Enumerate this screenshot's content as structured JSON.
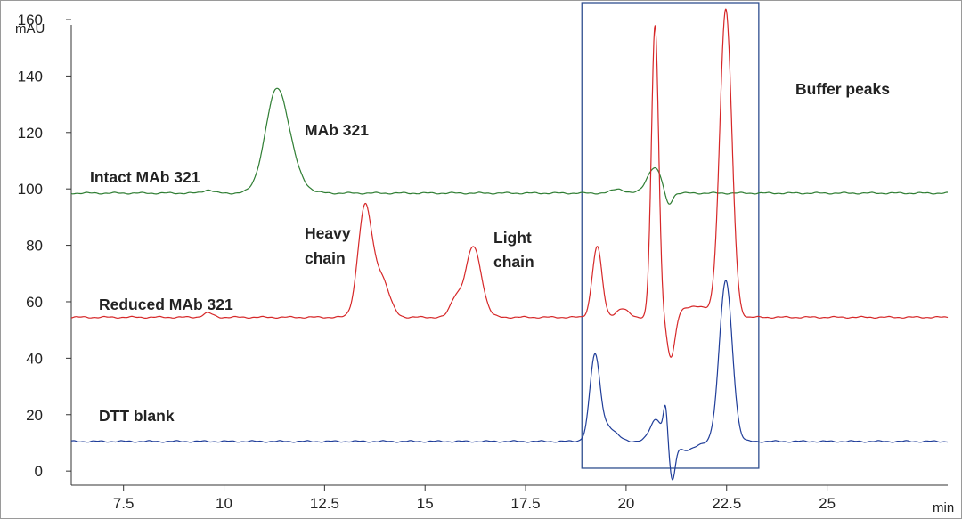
{
  "chart_data": {
    "type": "line",
    "title": "",
    "xlabel": "min",
    "ylabel": "mAU",
    "xlim": [
      6.2,
      28.0
    ],
    "ylim": [
      -5,
      166
    ],
    "x_ticks": [
      7.5,
      10,
      12.5,
      15,
      17.5,
      20,
      22.5,
      25
    ],
    "y_ticks": [
      0,
      20,
      40,
      60,
      80,
      100,
      120,
      140,
      160
    ],
    "x_tick_labels": [
      "7.5",
      "10",
      "12.5",
      "15",
      "17.5",
      "20",
      "22.5",
      "25"
    ],
    "y_tick_labels": [
      "0",
      "20",
      "40",
      "60",
      "80",
      "100",
      "120",
      "140",
      "160"
    ],
    "grid": false,
    "legend": "none",
    "series": [
      {
        "name": "Intact MAb 321",
        "color": "#2e7d32",
        "baseline": 98.5,
        "peaks": [
          {
            "rt": 9.6,
            "height": 1.2,
            "width": 0.12
          },
          {
            "rt": 11.3,
            "height": 34,
            "width": 0.28
          },
          {
            "rt": 11.65,
            "height": 6,
            "width": 0.3
          },
          {
            "rt": 19.8,
            "height": 1.5,
            "width": 0.15
          },
          {
            "rt": 20.7,
            "height": 9,
            "width": 0.18
          },
          {
            "rt": 21.05,
            "height": -5,
            "width": 0.09
          }
        ]
      },
      {
        "name": "Reduced MAb 321",
        "color": "#d62728",
        "baseline": 54.5,
        "peaks": [
          {
            "rt": 9.6,
            "height": 1.5,
            "width": 0.12
          },
          {
            "rt": 13.5,
            "height": 38,
            "width": 0.17
          },
          {
            "rt": 13.9,
            "height": 14,
            "width": 0.2
          },
          {
            "rt": 15.75,
            "height": 6,
            "width": 0.13
          },
          {
            "rt": 16.2,
            "height": 25,
            "width": 0.2
          },
          {
            "rt": 19.28,
            "height": 25,
            "width": 0.12
          },
          {
            "rt": 19.9,
            "height": 3,
            "width": 0.15
          },
          {
            "rt": 20.72,
            "height": 103,
            "width": 0.09
          },
          {
            "rt": 21.12,
            "height": -15,
            "width": 0.1
          },
          {
            "rt": 21.7,
            "height": 4,
            "width": 0.35
          },
          {
            "rt": 22.48,
            "height": 109,
            "width": 0.15
          }
        ]
      },
      {
        "name": "DTT blank",
        "color": "#1f3d99",
        "baseline": 10.5,
        "peaks": [
          {
            "rt": 19.22,
            "height": 27,
            "width": 0.12
          },
          {
            "rt": 19.45,
            "height": 6,
            "width": 0.25
          },
          {
            "rt": 20.75,
            "height": 8,
            "width": 0.15
          },
          {
            "rt": 20.98,
            "height": 11,
            "width": 0.05
          },
          {
            "rt": 21.15,
            "height": -13,
            "width": 0.07
          },
          {
            "rt": 21.5,
            "height": -3,
            "width": 0.25
          },
          {
            "rt": 22.48,
            "height": 57,
            "width": 0.16
          }
        ]
      }
    ],
    "highlight_box": {
      "x": [
        18.9,
        23.3
      ],
      "y": [
        1,
        166
      ],
      "color": "#2f4f8f"
    },
    "annotations": [
      {
        "id": "mab",
        "lines": [
          "MAb 321"
        ]
      },
      {
        "id": "intact",
        "lines": [
          "Intact MAb 321"
        ]
      },
      {
        "id": "heavy",
        "lines": [
          "Heavy",
          "chain"
        ]
      },
      {
        "id": "light",
        "lines": [
          "Light",
          "chain"
        ]
      },
      {
        "id": "reduced",
        "lines": [
          "Reduced MAb 321"
        ]
      },
      {
        "id": "dtt",
        "lines": [
          "DTT blank"
        ]
      },
      {
        "id": "buffer",
        "lines": [
          "Buffer peaks"
        ]
      }
    ]
  }
}
